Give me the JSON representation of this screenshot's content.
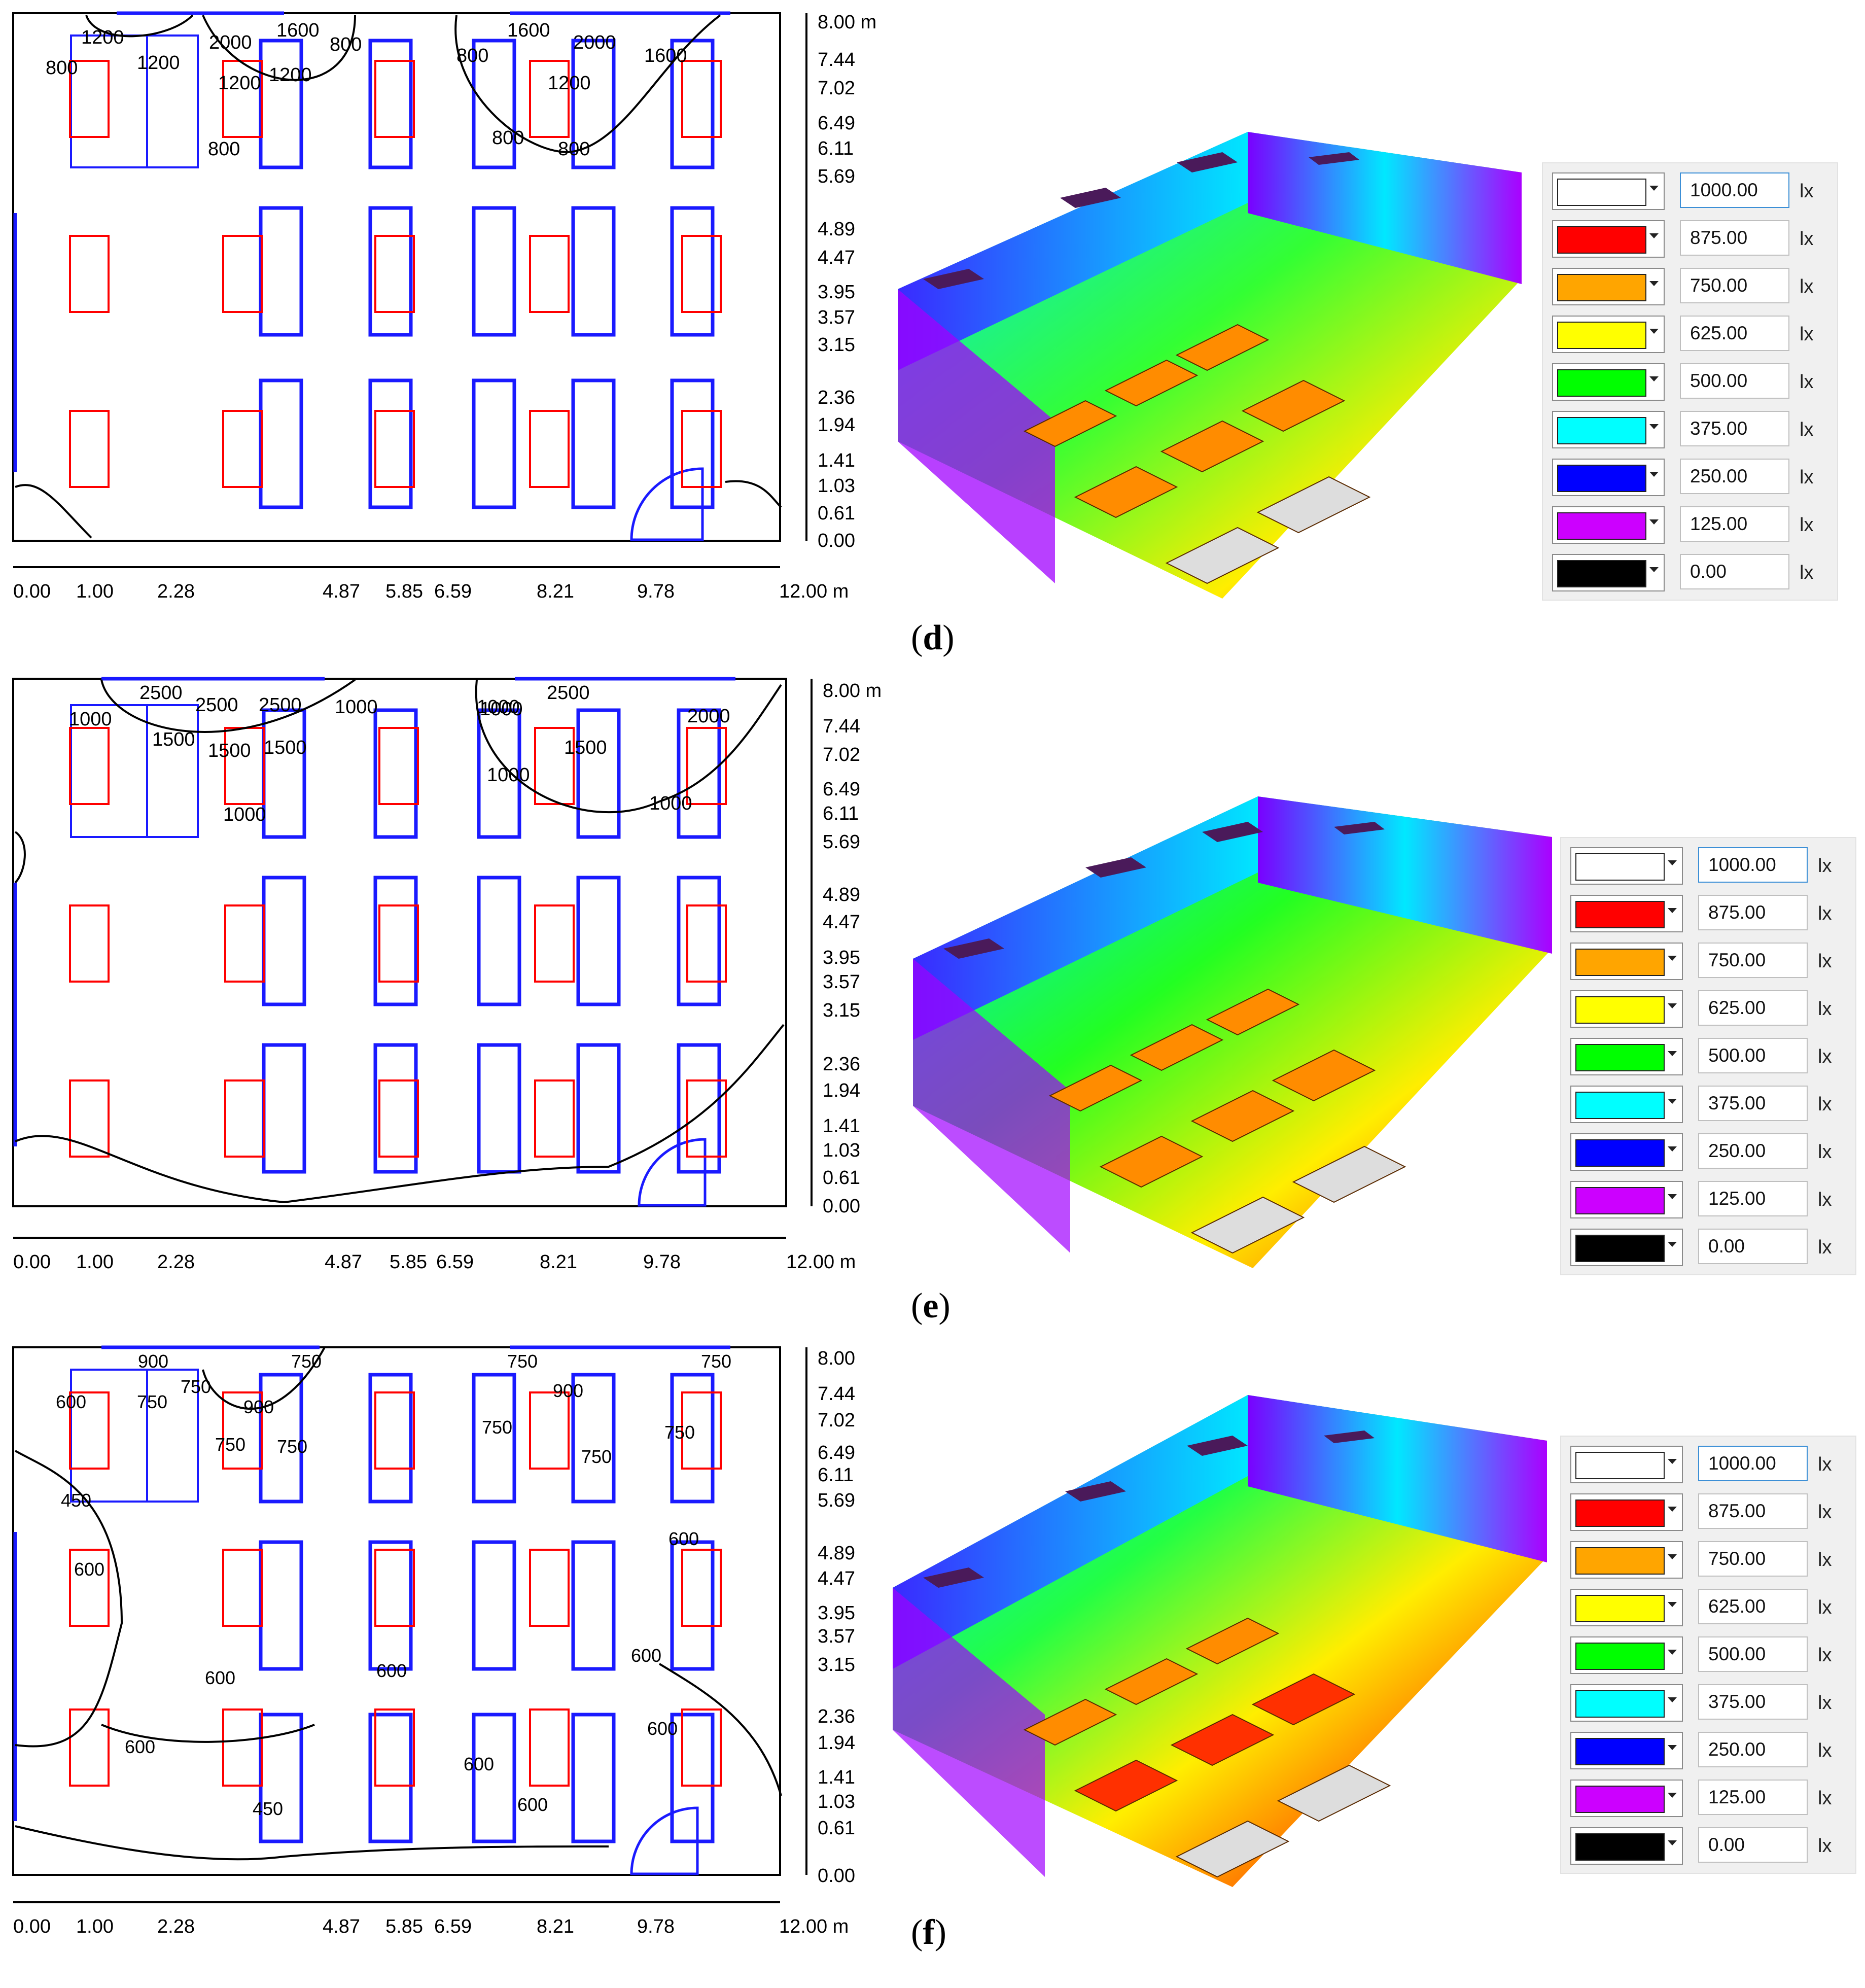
{
  "panels": [
    {
      "caption_letter": "d",
      "contours": [
        "1200",
        "2000",
        "1600",
        "800",
        "1600",
        "2000",
        "800",
        "1200",
        "1200",
        "1200",
        "800",
        "800",
        "1200",
        "800",
        "1600",
        "800"
      ],
      "x_ticks": [
        "0.00",
        "1.00",
        "2.28",
        "4.87",
        "5.85",
        "6.59",
        "8.21",
        "9.78",
        "12.00 m"
      ],
      "y_ticks": [
        "8.00 m",
        "7.44",
        "7.02",
        "6.49",
        "6.11",
        "5.69",
        "4.89",
        "4.47",
        "3.95",
        "3.57",
        "3.15",
        "2.36",
        "1.94",
        "1.41",
        "1.03",
        "0.61",
        "0.00"
      ]
    },
    {
      "caption_letter": "e",
      "contours": [
        "2500",
        "2500",
        "2500",
        "1000",
        "1500",
        "1500",
        "1500",
        "1000",
        "1000",
        "1000",
        "2500",
        "1000",
        "1500",
        "1000",
        "1000",
        "2000"
      ],
      "x_ticks": [
        "0.00",
        "1.00",
        "2.28",
        "4.87",
        "5.85",
        "6.59",
        "8.21",
        "9.78",
        "12.00 m"
      ],
      "y_ticks": [
        "8.00 m",
        "7.44",
        "7.02",
        "6.49",
        "6.11",
        "5.69",
        "4.89",
        "4.47",
        "3.95",
        "3.57",
        "3.15",
        "2.36",
        "1.94",
        "1.41",
        "1.03",
        "0.61",
        "0.00"
      ]
    },
    {
      "caption_letter": "f",
      "contours": [
        "900",
        "750",
        "750",
        "600",
        "750",
        "900",
        "750",
        "750",
        "750",
        "900",
        "750",
        "750",
        "750",
        "750",
        "450",
        "600",
        "600",
        "600",
        "600",
        "600",
        "600",
        "600",
        "600",
        "450",
        "600"
      ],
      "x_ticks": [
        "0.00",
        "1.00",
        "2.28",
        "4.87",
        "5.85",
        "6.59",
        "8.21",
        "9.78",
        "12.00 m"
      ],
      "y_ticks": [
        "8.00",
        "7.44",
        "7.02",
        "6.49",
        "6.11",
        "5.69",
        "4.89",
        "4.47",
        "3.95",
        "3.57",
        "3.15",
        "2.36",
        "1.94",
        "1.41",
        "1.03",
        "0.61",
        "0.00"
      ]
    }
  ],
  "legend": {
    "unit": "lx",
    "items": [
      {
        "value": "1000.00",
        "color": "#ffffff"
      },
      {
        "value": "875.00",
        "color": "#ff0000"
      },
      {
        "value": "750.00",
        "color": "#ffa500"
      },
      {
        "value": "625.00",
        "color": "#ffff00"
      },
      {
        "value": "500.00",
        "color": "#00ff00"
      },
      {
        "value": "375.00",
        "color": "#00ffff"
      },
      {
        "value": "250.00",
        "color": "#0000ff"
      },
      {
        "value": "125.00",
        "color": "#cc00ff"
      },
      {
        "value": "0.00",
        "color": "#000000"
      }
    ]
  }
}
